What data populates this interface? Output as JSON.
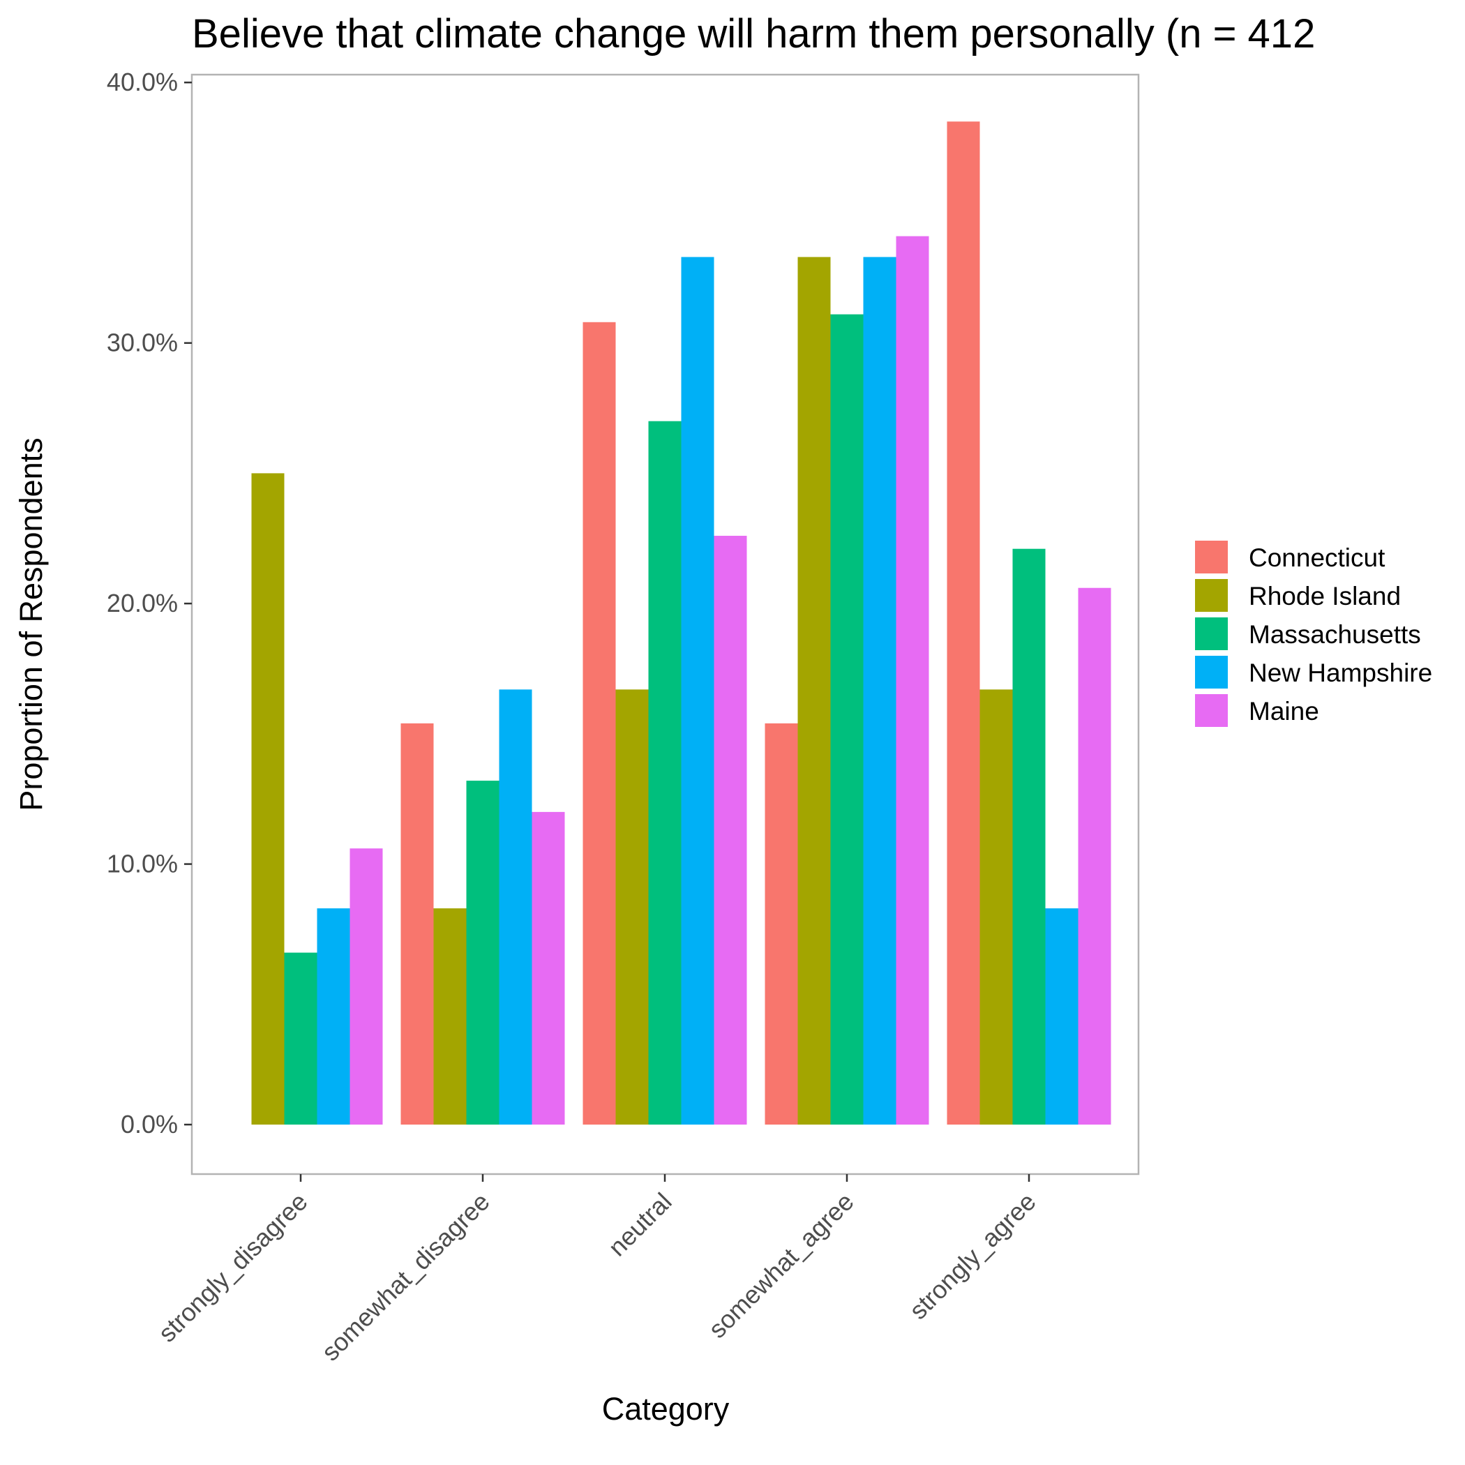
{
  "chart_data": {
    "type": "bar",
    "title": "Believe that climate change will harm them personally (n = 412",
    "xlabel": "Category",
    "ylabel": "Proportion of Respondents",
    "categories": [
      "strongly_disagree",
      "somewhat_disagree",
      "neutral",
      "somewhat_agree",
      "strongly_agree"
    ],
    "series": [
      {
        "name": "Connecticut",
        "color": "#F8766D",
        "values": [
          0.0,
          15.4,
          30.8,
          15.4,
          38.5
        ]
      },
      {
        "name": "Rhode Island",
        "color": "#A3A500",
        "values": [
          25.0,
          8.3,
          16.7,
          33.3,
          16.7
        ]
      },
      {
        "name": "Massachusetts",
        "color": "#00BF7D",
        "values": [
          6.6,
          13.2,
          27.0,
          31.1,
          22.1
        ]
      },
      {
        "name": "New Hampshire",
        "color": "#00B0F6",
        "values": [
          8.3,
          16.7,
          33.3,
          33.3,
          8.3
        ]
      },
      {
        "name": "Maine",
        "color": "#E76BF3",
        "values": [
          10.6,
          12.0,
          22.6,
          34.1,
          20.6
        ]
      }
    ],
    "yticks": [
      0,
      10,
      20,
      30,
      40
    ],
    "ytick_labels": [
      "0.0%",
      "10.0%",
      "20.0%",
      "30.0%",
      "40.0%"
    ],
    "ylim": [
      -1.9,
      40.3
    ],
    "grid": false,
    "legend_position": "right"
  }
}
